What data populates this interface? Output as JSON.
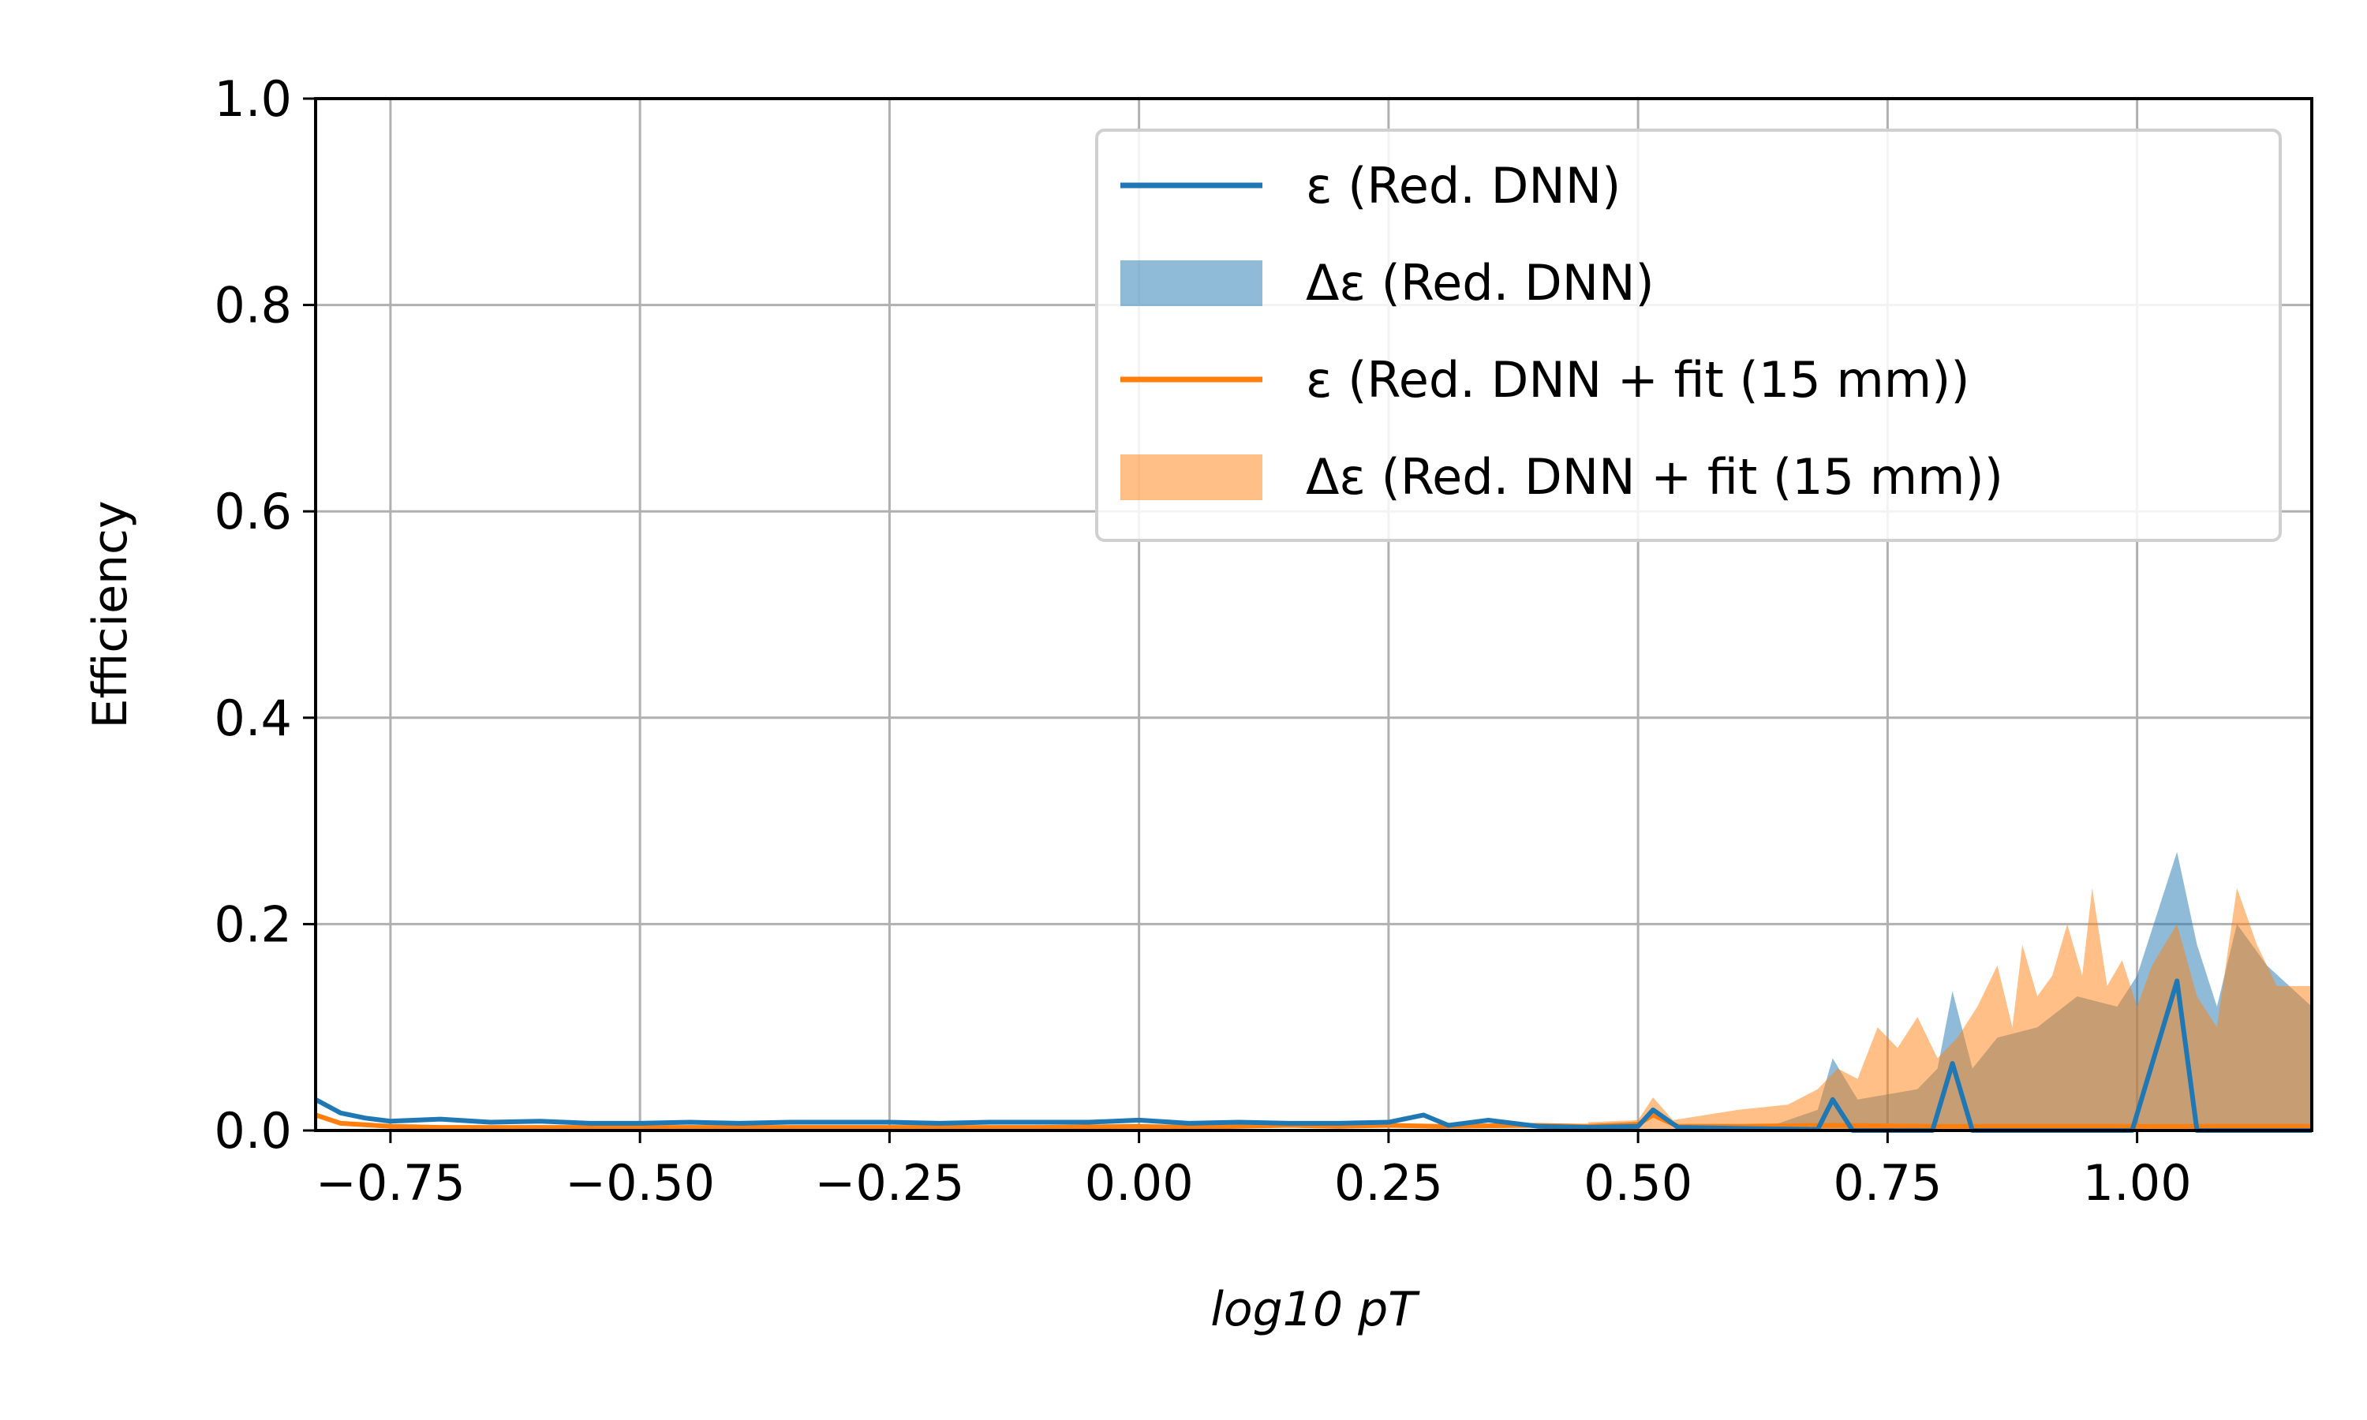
{
  "chart_data": {
    "type": "line",
    "xlabel": "log10 pT",
    "ylabel": "Efficiency",
    "xlim": [
      -0.825,
      1.175
    ],
    "ylim": [
      0,
      1.0
    ],
    "x_ticks": [
      "−0.75",
      "−0.50",
      "−0.25",
      "0.00",
      "0.25",
      "0.50",
      "0.75",
      "1.00"
    ],
    "x_tick_values": [
      -0.75,
      -0.5,
      -0.25,
      0.0,
      0.25,
      0.5,
      0.75,
      1.0
    ],
    "y_ticks": [
      "0.0",
      "0.2",
      "0.4",
      "0.6",
      "0.8",
      "1.0"
    ],
    "y_tick_values": [
      0,
      0.2,
      0.4,
      0.6,
      0.8,
      1.0
    ],
    "grid": true,
    "legend_position": "top-right",
    "legend": [
      {
        "label": "ε (Red. DNN)",
        "kind": "line",
        "color": "#1f77b4"
      },
      {
        "label": "Δε (Red. DNN)",
        "kind": "band",
        "color": "#1f77b4"
      },
      {
        "label": "ε (Red. DNN + fit (15 mm))",
        "kind": "line",
        "color": "#ff7f0e"
      },
      {
        "label": "Δε (Red. DNN + fit (15 mm))",
        "kind": "band",
        "color": "#ff7f0e"
      }
    ],
    "series": [
      {
        "name": "ε (Red. DNN)",
        "kind": "line",
        "color": "#1f77b4",
        "points": [
          [
            -0.825,
            0.03
          ],
          [
            -0.8,
            0.017
          ],
          [
            -0.775,
            0.012
          ],
          [
            -0.75,
            0.009
          ],
          [
            -0.7,
            0.011
          ],
          [
            -0.65,
            0.008
          ],
          [
            -0.6,
            0.009
          ],
          [
            -0.55,
            0.007
          ],
          [
            -0.5,
            0.007
          ],
          [
            -0.45,
            0.008
          ],
          [
            -0.4,
            0.007
          ],
          [
            -0.35,
            0.008
          ],
          [
            -0.3,
            0.008
          ],
          [
            -0.25,
            0.008
          ],
          [
            -0.2,
            0.007
          ],
          [
            -0.15,
            0.008
          ],
          [
            -0.1,
            0.008
          ],
          [
            -0.05,
            0.008
          ],
          [
            0.0,
            0.01
          ],
          [
            0.05,
            0.007
          ],
          [
            0.1,
            0.008
          ],
          [
            0.15,
            0.007
          ],
          [
            0.2,
            0.007
          ],
          [
            0.25,
            0.008
          ],
          [
            0.285,
            0.015
          ],
          [
            0.31,
            0.005
          ],
          [
            0.35,
            0.01
          ],
          [
            0.4,
            0.004
          ],
          [
            0.45,
            0.003
          ],
          [
            0.5,
            0.004
          ],
          [
            0.515,
            0.02
          ],
          [
            0.54,
            0.003
          ],
          [
            0.6,
            0.002
          ],
          [
            0.68,
            0.001
          ],
          [
            0.695,
            0.03
          ],
          [
            0.715,
            0.0
          ],
          [
            0.795,
            0.0
          ],
          [
            0.815,
            0.065
          ],
          [
            0.835,
            0.0
          ],
          [
            0.995,
            0.0
          ],
          [
            1.04,
            0.145
          ],
          [
            1.06,
            0.0
          ],
          [
            1.175,
            0.0
          ]
        ]
      },
      {
        "name": "Δε (Red. DNN)",
        "kind": "band",
        "color": "#1f77b4",
        "points": [
          [
            0.62,
            0.0
          ],
          [
            0.68,
            0.02
          ],
          [
            0.695,
            0.07
          ],
          [
            0.72,
            0.03
          ],
          [
            0.78,
            0.04
          ],
          [
            0.8,
            0.06
          ],
          [
            0.815,
            0.135
          ],
          [
            0.835,
            0.06
          ],
          [
            0.86,
            0.09
          ],
          [
            0.9,
            0.1
          ],
          [
            0.94,
            0.13
          ],
          [
            0.98,
            0.12
          ],
          [
            1.0,
            0.15
          ],
          [
            1.04,
            0.27
          ],
          [
            1.06,
            0.18
          ],
          [
            1.08,
            0.12
          ],
          [
            1.1,
            0.2
          ],
          [
            1.13,
            0.16
          ],
          [
            1.175,
            0.12
          ]
        ]
      },
      {
        "name": "ε (Red. DNN + fit (15 mm))",
        "kind": "line",
        "color": "#ff7f0e",
        "points": [
          [
            -0.825,
            0.015
          ],
          [
            -0.8,
            0.007
          ],
          [
            -0.75,
            0.004
          ],
          [
            -0.7,
            0.003
          ],
          [
            -0.6,
            0.003
          ],
          [
            -0.5,
            0.003
          ],
          [
            -0.4,
            0.003
          ],
          [
            -0.3,
            0.003
          ],
          [
            -0.2,
            0.003
          ],
          [
            -0.1,
            0.003
          ],
          [
            0.0,
            0.004
          ],
          [
            0.05,
            0.003
          ],
          [
            0.1,
            0.004
          ],
          [
            0.15,
            0.005
          ],
          [
            0.2,
            0.004
          ],
          [
            0.25,
            0.005
          ],
          [
            0.3,
            0.004
          ],
          [
            0.4,
            0.005
          ],
          [
            0.45,
            0.004
          ],
          [
            0.5,
            0.006
          ],
          [
            0.515,
            0.015
          ],
          [
            0.54,
            0.004
          ],
          [
            0.6,
            0.004
          ],
          [
            0.7,
            0.005
          ],
          [
            0.8,
            0.004
          ],
          [
            0.9,
            0.004
          ],
          [
            1.0,
            0.004
          ],
          [
            1.175,
            0.004
          ]
        ]
      },
      {
        "name": "Δε (Red. DNN + fit (15 mm))",
        "kind": "band",
        "color": "#ff7f0e",
        "points": [
          [
            0.45,
            0.008
          ],
          [
            0.5,
            0.01
          ],
          [
            0.515,
            0.032
          ],
          [
            0.535,
            0.01
          ],
          [
            0.6,
            0.02
          ],
          [
            0.65,
            0.025
          ],
          [
            0.68,
            0.04
          ],
          [
            0.7,
            0.06
          ],
          [
            0.72,
            0.05
          ],
          [
            0.74,
            0.1
          ],
          [
            0.76,
            0.08
          ],
          [
            0.78,
            0.11
          ],
          [
            0.8,
            0.07
          ],
          [
            0.82,
            0.09
          ],
          [
            0.84,
            0.12
          ],
          [
            0.86,
            0.16
          ],
          [
            0.875,
            0.1
          ],
          [
            0.885,
            0.18
          ],
          [
            0.9,
            0.13
          ],
          [
            0.915,
            0.15
          ],
          [
            0.93,
            0.2
          ],
          [
            0.945,
            0.15
          ],
          [
            0.955,
            0.235
          ],
          [
            0.97,
            0.14
          ],
          [
            0.985,
            0.165
          ],
          [
            1.0,
            0.12
          ],
          [
            1.015,
            0.16
          ],
          [
            1.04,
            0.2
          ],
          [
            1.06,
            0.13
          ],
          [
            1.08,
            0.1
          ],
          [
            1.1,
            0.235
          ],
          [
            1.12,
            0.18
          ],
          [
            1.14,
            0.14
          ],
          [
            1.175,
            0.14
          ]
        ]
      }
    ]
  }
}
